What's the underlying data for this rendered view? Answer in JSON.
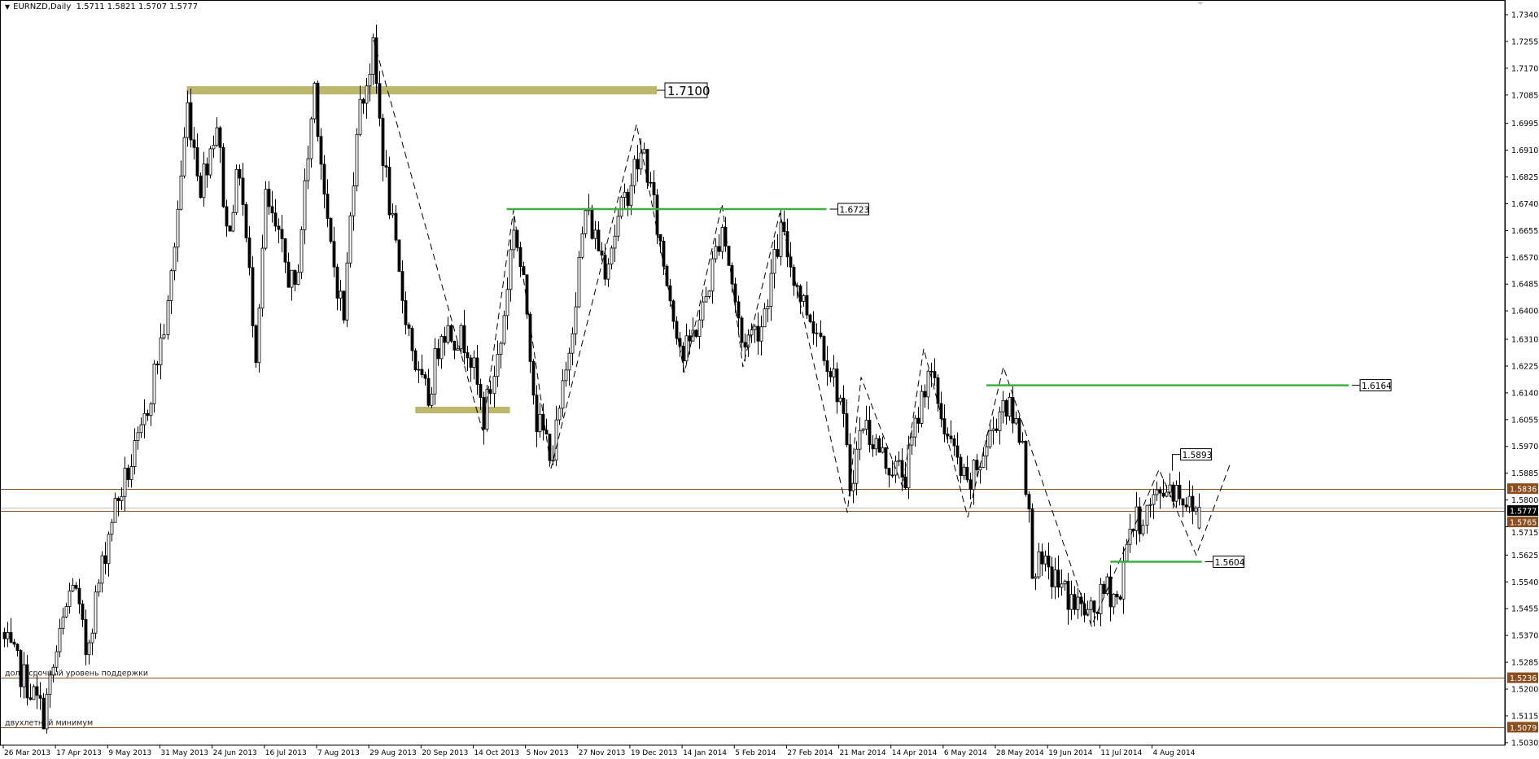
{
  "header": {
    "symbol_timeframe": "EURNZD,Daily",
    "ohlc": "1.5711 1.5821 1.5707 1.5777",
    "menu_icon": "triangle-down-icon"
  },
  "chart_data": {
    "type": "candlestick",
    "symbol": "EURNZD",
    "timeframe": "Daily",
    "last_bar": {
      "open": 1.5711,
      "high": 1.5821,
      "low": 1.5707,
      "close": 1.5777
    },
    "ylim": [
      1.5022,
      1.7381
    ],
    "grid": false,
    "y_ticks": [
      "1.7340",
      "1.7255",
      "1.7170",
      "1.7085",
      "1.6995",
      "1.6910",
      "1.6825",
      "1.6740",
      "1.6655",
      "1.6570",
      "1.6485",
      "1.6400",
      "1.6310",
      "1.6225",
      "1.6140",
      "1.6055",
      "1.5970",
      "1.5885",
      "1.5800",
      "1.5715",
      "1.5625",
      "1.5540",
      "1.5455",
      "1.5370",
      "1.5285",
      "1.5200",
      "1.5115",
      "1.5030"
    ],
    "x_tick_labels": [
      "26 Mar 2013",
      "17 Apr 2013",
      "9 May 2013",
      "31 May 2013",
      "24 Jun 2013",
      "16 Jul 2013",
      "7 Aug 2013",
      "29 Aug 2013",
      "20 Sep 2013",
      "14 Oct 2013",
      "5 Nov 2013",
      "27 Nov 2013",
      "19 Dec 2013",
      "14 Jan 2014",
      "5 Feb 2014",
      "27 Feb 2014",
      "21 Mar 2014",
      "14 Apr 2014",
      "6 May 2014",
      "28 May 2014",
      "19 Jun 2014",
      "11 Jul 2014",
      "4 Aug 2014"
    ],
    "bars_per_x_label": 16,
    "bar_count": 367,
    "approx_close_path": [
      [
        0,
        1.535
      ],
      [
        12,
        1.512
      ],
      [
        21,
        1.555
      ],
      [
        25,
        1.532
      ],
      [
        33,
        1.575
      ],
      [
        42,
        1.6
      ],
      [
        50,
        1.64
      ],
      [
        56,
        1.705
      ],
      [
        60,
        1.68
      ],
      [
        65,
        1.7
      ],
      [
        68,
        1.665
      ],
      [
        72,
        1.685
      ],
      [
        77,
        1.628
      ],
      [
        80,
        1.675
      ],
      [
        89,
        1.645
      ],
      [
        95,
        1.712
      ],
      [
        99,
        1.665
      ],
      [
        104,
        1.638
      ],
      [
        108,
        1.7
      ],
      [
        113,
        1.722
      ],
      [
        116,
        1.69
      ],
      [
        121,
        1.65
      ],
      [
        127,
        1.618
      ],
      [
        130,
        1.612
      ],
      [
        134,
        1.635
      ],
      [
        142,
        1.63
      ],
      [
        147,
        1.606
      ],
      [
        152,
        1.63
      ],
      [
        156,
        1.668
      ],
      [
        160,
        1.64
      ],
      [
        163,
        1.605
      ],
      [
        168,
        1.595
      ],
      [
        172,
        1.62
      ],
      [
        178,
        1.672
      ],
      [
        184,
        1.655
      ],
      [
        193,
        1.685
      ],
      [
        196,
        1.69
      ],
      [
        202,
        1.655
      ],
      [
        208,
        1.625
      ],
      [
        214,
        1.64
      ],
      [
        220,
        1.668
      ],
      [
        226,
        1.63
      ],
      [
        232,
        1.636
      ],
      [
        238,
        1.665
      ],
      [
        244,
        1.645
      ],
      [
        250,
        1.632
      ],
      [
        256,
        1.612
      ],
      [
        259,
        1.585
      ],
      [
        263,
        1.605
      ],
      [
        270,
        1.592
      ],
      [
        276,
        1.588
      ],
      [
        283,
        1.622
      ],
      [
        289,
        1.6
      ],
      [
        295,
        1.583
      ],
      [
        301,
        1.597
      ],
      [
        306,
        1.612
      ],
      [
        312,
        1.6
      ],
      [
        315,
        1.56
      ],
      [
        321,
        1.556
      ],
      [
        327,
        1.548
      ],
      [
        333,
        1.543
      ],
      [
        338,
        1.552
      ],
      [
        342,
        1.548
      ],
      [
        344,
        1.57
      ],
      [
        349,
        1.575
      ],
      [
        356,
        1.585
      ],
      [
        360,
        1.583
      ],
      [
        363,
        1.578
      ],
      [
        366,
        1.5777
      ]
    ],
    "horizontal_levels": [
      {
        "price": 1.5836,
        "label": "1.5836",
        "color": "#8b4f1f"
      },
      {
        "price": 1.5765,
        "label": "1.5765",
        "color": "#8b4f1f"
      },
      {
        "price": 1.5236,
        "label": "1.5236",
        "color": "#8b4f1f",
        "text": "долгосрочный уровень поддержки"
      },
      {
        "price": 1.5079,
        "label": "1.5079",
        "color": "#8b4f1f",
        "text": "двухлетний минимум"
      }
    ],
    "bid_line": {
      "price": 1.5777,
      "label": "1.5777",
      "color": "#c0c0c0"
    },
    "zones": [
      {
        "from_bar": 56,
        "to_bar": 200,
        "price_low": 1.7087,
        "price_high": 1.7113,
        "label": "1.7100",
        "color": "#bdb76b"
      },
      {
        "from_bar": 126,
        "to_bar": 155,
        "price_low": 1.6075,
        "price_high": 1.6096,
        "color": "#bdb76b"
      }
    ],
    "green_levels": [
      {
        "price": 1.6723,
        "from_bar": 154,
        "to_bar": 252,
        "label": "1.6723"
      },
      {
        "price": 1.6164,
        "from_bar": 301,
        "to_bar": 412,
        "label": "1.6164"
      },
      {
        "price": 1.5604,
        "from_bar": 339,
        "to_bar": 367,
        "label": "1.5604"
      }
    ],
    "green_color": "#3cb043",
    "price_callouts": [
      {
        "bar": 358,
        "price": 1.5893,
        "label": "1.5893"
      }
    ],
    "zigzag": [
      [
        113.2,
        1.726
      ],
      [
        146.6,
        1.602
      ],
      [
        156.1,
        1.672
      ],
      [
        167.6,
        1.59
      ],
      [
        193.8,
        1.6992
      ],
      [
        208.5,
        1.6204
      ],
      [
        220,
        1.6739
      ],
      [
        226.4,
        1.6222
      ],
      [
        237.7,
        1.6711
      ],
      [
        258.4,
        1.576
      ],
      [
        262.6,
        1.619
      ],
      [
        275.3,
        1.5842
      ],
      [
        281.8,
        1.628
      ],
      [
        295.3,
        1.5745
      ],
      [
        306.2,
        1.6222
      ],
      [
        333.2,
        1.54
      ],
      [
        353.9,
        1.5897
      ],
      [
        365.3,
        1.5625
      ],
      [
        375.6,
        1.5912
      ]
    ]
  }
}
